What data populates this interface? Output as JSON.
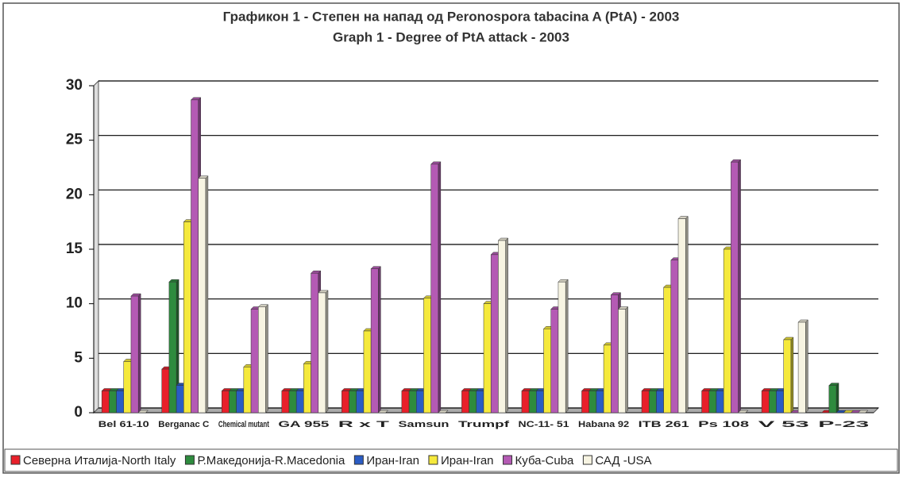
{
  "chart_data": {
    "type": "bar",
    "title": "Графикон 1 - Степен на напад од Peronospora tabacina A (PtA) - 2003",
    "subtitle": "Graph 1 - Degree of PtA attack - 2003",
    "categories": [
      "Bel 61-10",
      "Berganac C",
      "Chemical mutant",
      "GA 955",
      "R x T",
      "Samsun",
      "Trumpf",
      "NC-11- 51",
      "Habana 92",
      "ITB 261",
      "Ps 108",
      "V 53",
      "P-23"
    ],
    "series": [
      {
        "name": "Северна Италија-North Italy",
        "color": "#e8202a",
        "values": [
          2,
          4,
          2,
          2,
          2,
          2,
          2,
          2,
          2,
          2,
          2,
          2,
          0
        ]
      },
      {
        "name": "Р.Македонија-R.Macedonia",
        "color": "#2e8b3e",
        "values": [
          2,
          12,
          2,
          2,
          2,
          2,
          2,
          2,
          2,
          2,
          2,
          2,
          2.5
        ]
      },
      {
        "name": "Иран-Iran",
        "color": "#2a5cc4",
        "values": [
          2,
          2.5,
          2,
          2,
          2,
          2,
          2,
          2,
          2,
          2,
          2,
          2,
          0
        ]
      },
      {
        "name": "Иран-Iran",
        "color": "#f5e93c",
        "values": [
          4.7,
          17.5,
          4.2,
          4.5,
          7.5,
          10.5,
          10,
          7.7,
          6.2,
          11.5,
          15,
          6.7,
          0
        ]
      },
      {
        "name": "Куба-Cuba",
        "color": "#b45ab4",
        "values": [
          10.7,
          28.7,
          9.5,
          12.8,
          13.2,
          22.8,
          14.5,
          9.5,
          10.8,
          14,
          23,
          0,
          0
        ]
      },
      {
        "name": "САД -USA",
        "color": "#f7f4e2",
        "values": [
          0,
          21.5,
          9.7,
          11,
          0,
          0,
          15.8,
          12,
          9.5,
          17.8,
          0,
          8.3,
          0
        ]
      }
    ],
    "ylim": [
      0,
      30
    ],
    "yticks": [
      0,
      5,
      10,
      15,
      20,
      25,
      30
    ],
    "grid": true
  }
}
